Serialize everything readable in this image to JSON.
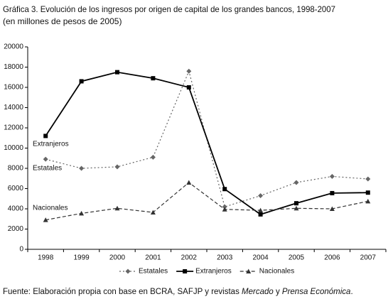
{
  "chart_data": {
    "type": "line",
    "title": "Gráfica 3. Evolución de los ingresos por origen de capital de los grandes bancos, 1998-2007",
    "subtitle": "(en millones de pesos de 2005)",
    "categories": [
      "1998",
      "1999",
      "2000",
      "2001",
      "2002",
      "2003",
      "2004",
      "2005",
      "2006",
      "2007"
    ],
    "series": [
      {
        "name": "Estatales",
        "color": "#666666",
        "marker": "diamond",
        "dash": "dotted",
        "values": [
          8900,
          8000,
          8150,
          9100,
          17600,
          4200,
          5300,
          6600,
          7200,
          6950
        ]
      },
      {
        "name": "Extranjeros",
        "color": "#000000",
        "marker": "square",
        "dash": "solid",
        "values": [
          11200,
          16600,
          17500,
          16900,
          16000,
          5950,
          3450,
          4550,
          5550,
          5600
        ]
      },
      {
        "name": "Nacionales",
        "color": "#333333",
        "marker": "triangle",
        "dash": "dashed",
        "values": [
          2900,
          3550,
          4050,
          3650,
          6600,
          3950,
          3850,
          4050,
          4000,
          4750
        ]
      }
    ],
    "annotations": [
      "Extranjeros",
      "Estatales",
      "Nacionales"
    ],
    "ylim": [
      0,
      20000
    ],
    "yticks": [
      0,
      2000,
      4000,
      6000,
      8000,
      10000,
      12000,
      14000,
      16000,
      18000,
      20000
    ],
    "grid": false,
    "legend": "bottom",
    "source": [
      "Fuente: Elaboración propia con base en BCRA, SAFJP y revistas ",
      "Mercado",
      " y ",
      "Prensa Económica",
      "."
    ]
  }
}
